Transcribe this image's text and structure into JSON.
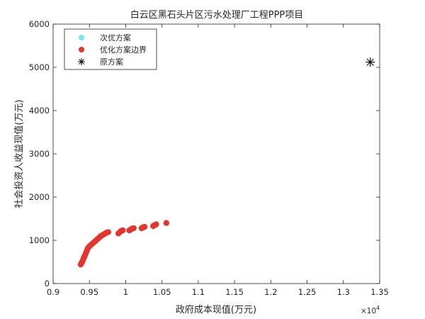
{
  "chart_data": {
    "type": "scatter",
    "title": "白云区黑石头片区污水处理厂工程PPP项目",
    "xlabel": "政府成本现值(万元)",
    "ylabel": "社会投资人收益现值(万元)",
    "x_exponent_label": "×10",
    "x_exponent_power": "4",
    "xlim": [
      9000,
      13500
    ],
    "ylim": [
      0,
      6000
    ],
    "x_ticks": [
      9000,
      9500,
      10000,
      10500,
      11000,
      11500,
      12000,
      12500,
      13000,
      13500
    ],
    "x_tick_labels": [
      "0.9",
      "0.95",
      "1",
      "1.05",
      "1.1",
      "1.15",
      "1.2",
      "1.25",
      "1.3",
      "1.35"
    ],
    "y_ticks": [
      0,
      1000,
      2000,
      3000,
      4000,
      5000,
      6000
    ],
    "y_tick_labels": [
      "0",
      "1000",
      "2000",
      "3000",
      "4000",
      "5000",
      "6000"
    ],
    "grid": false,
    "legend_position": "top-left",
    "series": [
      {
        "name": "次优方案",
        "marker": "circle",
        "color": "#6fe8e8",
        "points": []
      },
      {
        "name": "优化方案边界",
        "marker": "circle",
        "color": "#e3352d",
        "points": [
          [
            9380,
            440
          ],
          [
            9390,
            470
          ],
          [
            9400,
            500
          ],
          [
            9410,
            540
          ],
          [
            9420,
            580
          ],
          [
            9430,
            620
          ],
          [
            9440,
            660
          ],
          [
            9450,
            700
          ],
          [
            9460,
            740
          ],
          [
            9470,
            780
          ],
          [
            9480,
            820
          ],
          [
            9500,
            860
          ],
          [
            9520,
            890
          ],
          [
            9540,
            920
          ],
          [
            9560,
            950
          ],
          [
            9580,
            980
          ],
          [
            9600,
            1010
          ],
          [
            9620,
            1040
          ],
          [
            9640,
            1070
          ],
          [
            9660,
            1100
          ],
          [
            9680,
            1120
          ],
          [
            9700,
            1140
          ],
          [
            9720,
            1160
          ],
          [
            9740,
            1180
          ],
          [
            9760,
            1190
          ],
          [
            9900,
            1160
          ],
          [
            9920,
            1190
          ],
          [
            9940,
            1220
          ],
          [
            9960,
            1230
          ],
          [
            10050,
            1230
          ],
          [
            10070,
            1250
          ],
          [
            10090,
            1270
          ],
          [
            10110,
            1280
          ],
          [
            10220,
            1280
          ],
          [
            10240,
            1300
          ],
          [
            10260,
            1310
          ],
          [
            10380,
            1330
          ],
          [
            10400,
            1350
          ],
          [
            10420,
            1370
          ],
          [
            10560,
            1400
          ]
        ]
      },
      {
        "name": "原方案",
        "marker": "asterisk",
        "color": "#000000",
        "points": [
          [
            13370,
            5120
          ]
        ]
      }
    ]
  }
}
